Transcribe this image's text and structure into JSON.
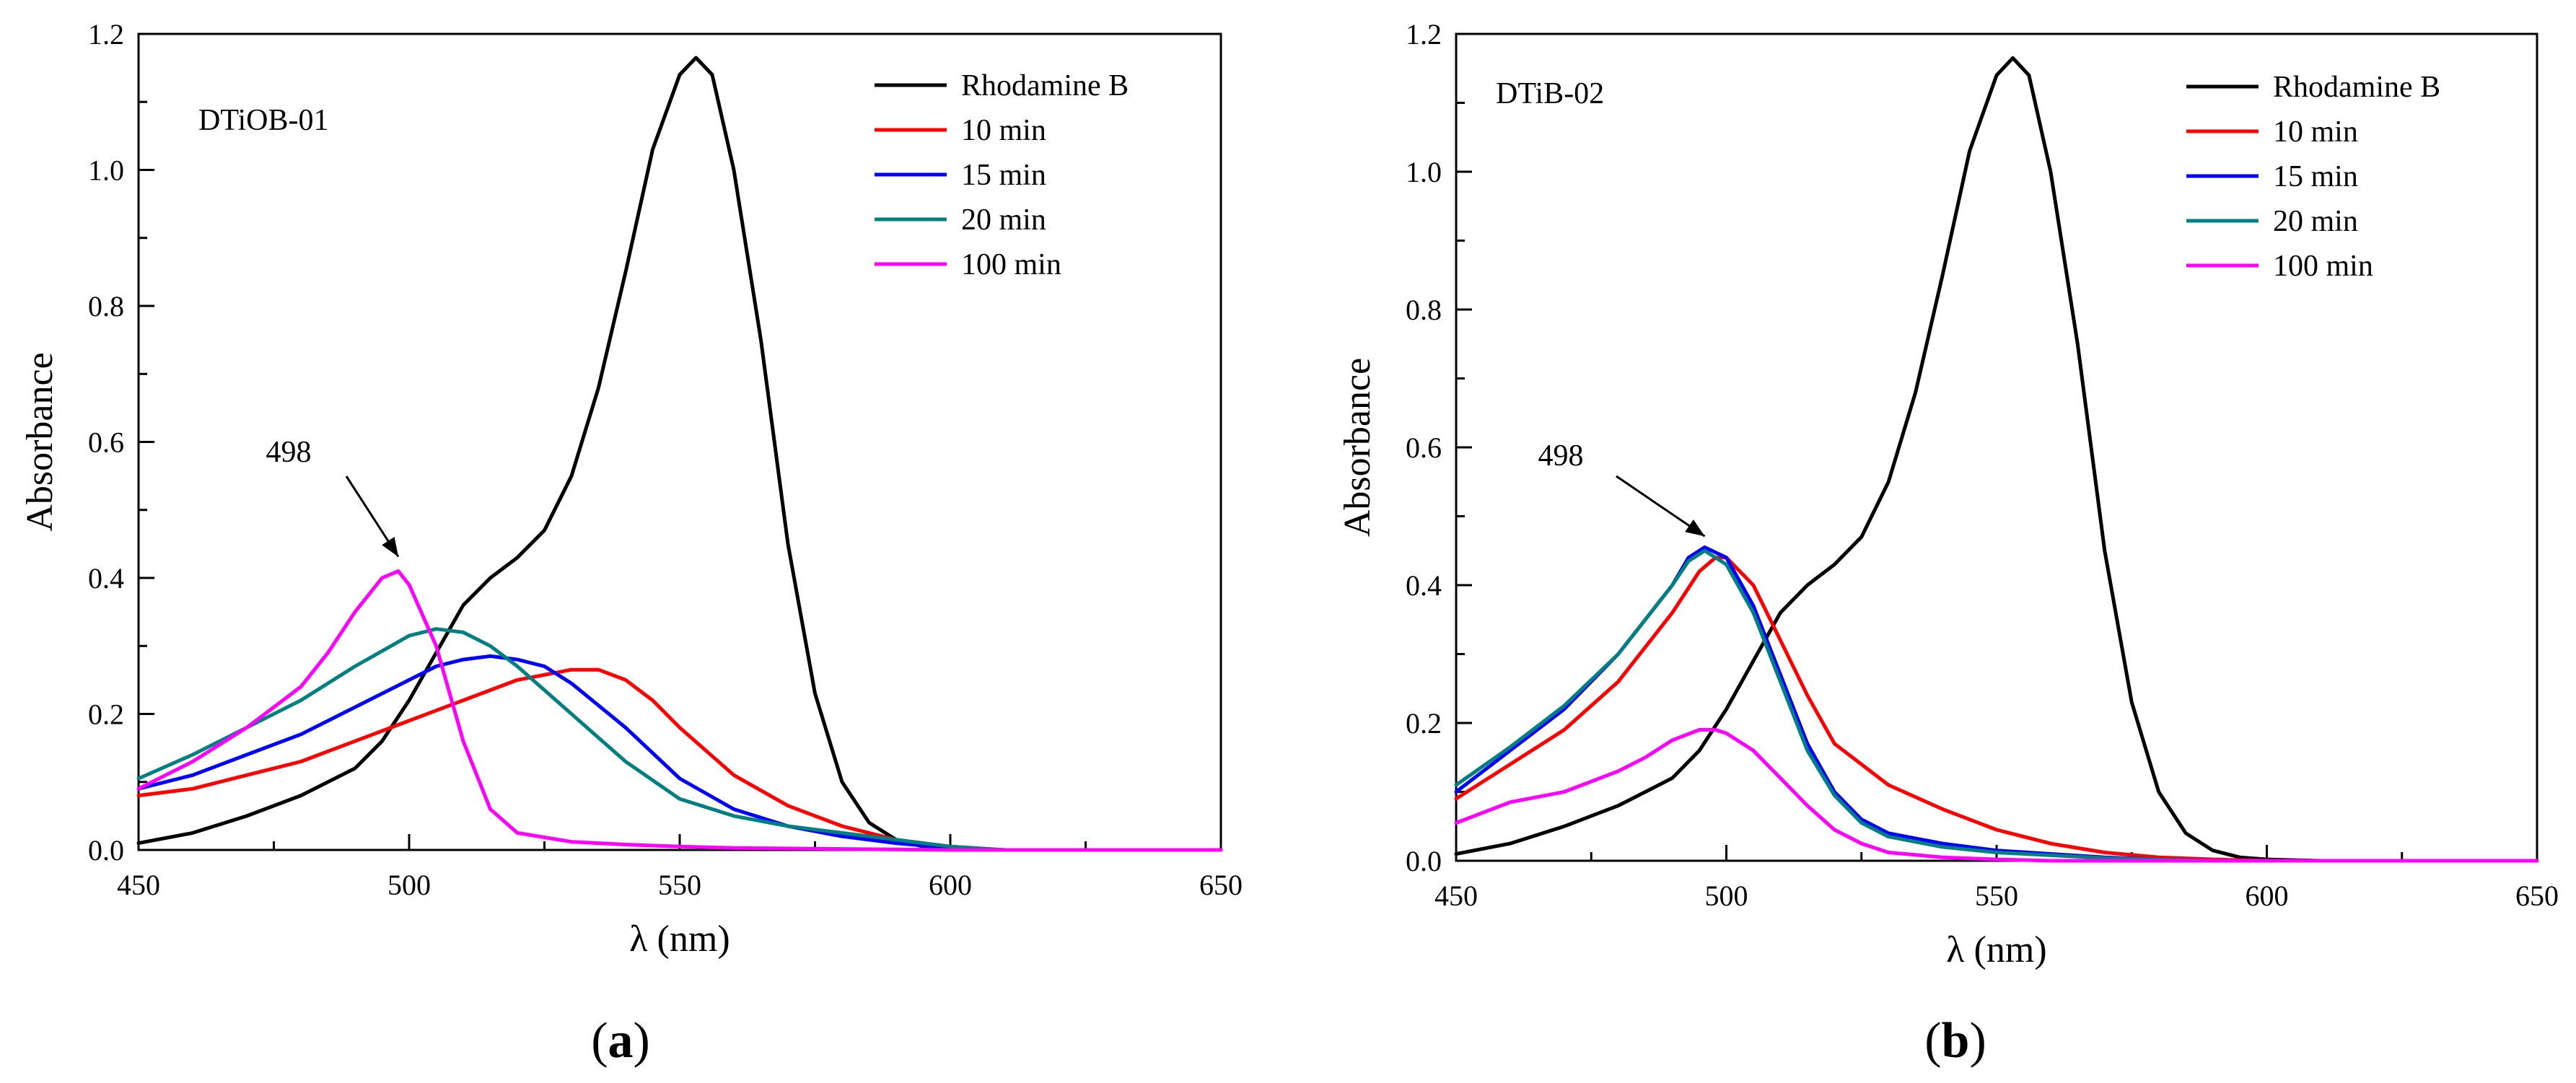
{
  "chart_data": [
    {
      "type": "line",
      "panel_label": {
        "open": "(",
        "letter": "a",
        "close": ")"
      },
      "sample_label": "DTiOB-01",
      "xlabel": "λ (nm)",
      "ylabel": "Absorbance",
      "xlim": [
        450,
        650
      ],
      "ylim": [
        0,
        1.2
      ],
      "xticks": [
        450,
        500,
        550,
        600,
        650
      ],
      "xtick_labels": [
        "450",
        "500",
        "550",
        "600",
        "650"
      ],
      "yticks": [
        0,
        0.2,
        0.4,
        0.6,
        0.8,
        1.0,
        1.2
      ],
      "ytick_labels": [
        "0.0",
        "0.2",
        "0.4",
        "0.6",
        "0.8",
        "1.0",
        "1.2"
      ],
      "grid": false,
      "legend_position": "top-right",
      "annotation": {
        "text": "498",
        "x": 498,
        "y": 0.41
      },
      "series": [
        {
          "name": "Rhodamine B",
          "color": "#000000",
          "x": [
            450,
            460,
            470,
            480,
            490,
            495,
            500,
            505,
            510,
            515,
            520,
            525,
            530,
            535,
            540,
            545,
            550,
            553,
            556,
            560,
            565,
            570,
            575,
            580,
            585,
            590,
            595,
            600,
            610,
            620,
            650
          ],
          "y": [
            0.01,
            0.025,
            0.05,
            0.08,
            0.12,
            0.16,
            0.22,
            0.29,
            0.36,
            0.4,
            0.43,
            0.47,
            0.55,
            0.68,
            0.85,
            1.03,
            1.14,
            1.165,
            1.14,
            1.0,
            0.75,
            0.45,
            0.23,
            0.1,
            0.04,
            0.015,
            0.005,
            0.002,
            0,
            0,
            0
          ]
        },
        {
          "name": "10 min",
          "color": "#ff0000",
          "x": [
            450,
            460,
            470,
            480,
            490,
            500,
            510,
            520,
            530,
            535,
            540,
            545,
            550,
            560,
            570,
            580,
            590,
            600,
            610,
            650
          ],
          "y": [
            0.08,
            0.09,
            0.11,
            0.13,
            0.16,
            0.19,
            0.22,
            0.25,
            0.265,
            0.265,
            0.25,
            0.22,
            0.18,
            0.11,
            0.065,
            0.035,
            0.015,
            0.005,
            0,
            0
          ]
        },
        {
          "name": "15 min",
          "color": "#0000ff",
          "x": [
            450,
            460,
            470,
            480,
            490,
            500,
            505,
            510,
            515,
            520,
            525,
            530,
            540,
            550,
            560,
            570,
            580,
            590,
            600,
            610,
            650
          ],
          "y": [
            0.09,
            0.11,
            0.14,
            0.17,
            0.21,
            0.25,
            0.27,
            0.28,
            0.285,
            0.28,
            0.27,
            0.245,
            0.18,
            0.105,
            0.06,
            0.035,
            0.02,
            0.01,
            0.003,
            0,
            0
          ]
        },
        {
          "name": "20 min",
          "color": "#008080",
          "x": [
            450,
            460,
            470,
            480,
            490,
            500,
            505,
            510,
            515,
            520,
            530,
            540,
            550,
            560,
            570,
            580,
            590,
            600,
            610,
            650
          ],
          "y": [
            0.105,
            0.14,
            0.18,
            0.22,
            0.27,
            0.315,
            0.325,
            0.32,
            0.3,
            0.27,
            0.2,
            0.13,
            0.075,
            0.05,
            0.035,
            0.025,
            0.015,
            0.005,
            0,
            0
          ]
        },
        {
          "name": "100 min",
          "color": "#ff00ff",
          "x": [
            450,
            460,
            470,
            480,
            485,
            490,
            495,
            498,
            500,
            505,
            510,
            515,
            520,
            530,
            540,
            550,
            560,
            600,
            650
          ],
          "y": [
            0.09,
            0.13,
            0.18,
            0.24,
            0.29,
            0.35,
            0.4,
            0.41,
            0.39,
            0.3,
            0.16,
            0.06,
            0.025,
            0.012,
            0.008,
            0.005,
            0.003,
            0,
            0
          ]
        }
      ]
    },
    {
      "type": "line",
      "panel_label": {
        "open": "(",
        "letter": "b",
        "close": ")"
      },
      "sample_label": "DTiB-02",
      "xlabel": "λ (nm)",
      "ylabel": "Absorbance",
      "xlim": [
        450,
        650
      ],
      "ylim": [
        0,
        1.2
      ],
      "xticks": [
        450,
        500,
        550,
        600,
        650
      ],
      "xtick_labels": [
        "450",
        "500",
        "550",
        "600",
        "650"
      ],
      "yticks": [
        0,
        0.2,
        0.4,
        0.6,
        0.8,
        1.0,
        1.2
      ],
      "ytick_labels": [
        "0.0",
        "0.2",
        "0.4",
        "0.6",
        "0.8",
        "1.0",
        "1.2"
      ],
      "grid": false,
      "legend_position": "top-right",
      "annotation": {
        "text": "498",
        "x": 496,
        "y": 0.45
      },
      "series": [
        {
          "name": "Rhodamine B",
          "color": "#000000",
          "x": [
            450,
            460,
            470,
            480,
            490,
            495,
            500,
            505,
            510,
            515,
            520,
            525,
            530,
            535,
            540,
            545,
            550,
            553,
            556,
            560,
            565,
            570,
            575,
            580,
            585,
            590,
            595,
            600,
            610,
            620,
            650
          ],
          "y": [
            0.01,
            0.025,
            0.05,
            0.08,
            0.12,
            0.16,
            0.22,
            0.29,
            0.36,
            0.4,
            0.43,
            0.47,
            0.55,
            0.68,
            0.85,
            1.03,
            1.14,
            1.165,
            1.14,
            1.0,
            0.75,
            0.45,
            0.23,
            0.1,
            0.04,
            0.015,
            0.005,
            0.002,
            0,
            0,
            0
          ]
        },
        {
          "name": "10 min",
          "color": "#ff0000",
          "x": [
            450,
            460,
            470,
            480,
            490,
            495,
            498,
            500,
            505,
            510,
            515,
            520,
            530,
            540,
            550,
            560,
            570,
            580,
            590,
            600,
            650
          ],
          "y": [
            0.09,
            0.14,
            0.19,
            0.26,
            0.36,
            0.42,
            0.44,
            0.44,
            0.4,
            0.32,
            0.24,
            0.17,
            0.11,
            0.075,
            0.045,
            0.025,
            0.012,
            0.005,
            0.002,
            0,
            0
          ]
        },
        {
          "name": "15 min",
          "color": "#0000ff",
          "x": [
            450,
            460,
            470,
            480,
            490,
            493,
            496,
            500,
            505,
            510,
            515,
            520,
            525,
            530,
            540,
            550,
            560,
            570,
            580,
            590,
            600,
            650
          ],
          "y": [
            0.1,
            0.16,
            0.22,
            0.3,
            0.4,
            0.44,
            0.455,
            0.44,
            0.37,
            0.27,
            0.17,
            0.1,
            0.06,
            0.04,
            0.025,
            0.015,
            0.01,
            0.005,
            0.002,
            0,
            0,
            0
          ]
        },
        {
          "name": "20 min",
          "color": "#008080",
          "x": [
            450,
            460,
            470,
            480,
            490,
            493,
            496,
            500,
            505,
            510,
            515,
            520,
            525,
            530,
            540,
            550,
            560,
            570,
            580,
            590,
            600,
            650
          ],
          "y": [
            0.11,
            0.165,
            0.225,
            0.3,
            0.4,
            0.435,
            0.45,
            0.43,
            0.36,
            0.26,
            0.16,
            0.095,
            0.055,
            0.035,
            0.02,
            0.012,
            0.008,
            0.004,
            0.002,
            0,
            0,
            0
          ]
        },
        {
          "name": "100 min",
          "color": "#ff00ff",
          "x": [
            450,
            455,
            460,
            470,
            480,
            485,
            490,
            495,
            498,
            500,
            505,
            510,
            515,
            520,
            525,
            530,
            540,
            550,
            560,
            600,
            650
          ],
          "y": [
            0.055,
            0.07,
            0.085,
            0.1,
            0.13,
            0.15,
            0.175,
            0.19,
            0.19,
            0.185,
            0.16,
            0.12,
            0.08,
            0.045,
            0.025,
            0.012,
            0.005,
            0.002,
            0,
            0,
            0
          ]
        }
      ]
    }
  ]
}
